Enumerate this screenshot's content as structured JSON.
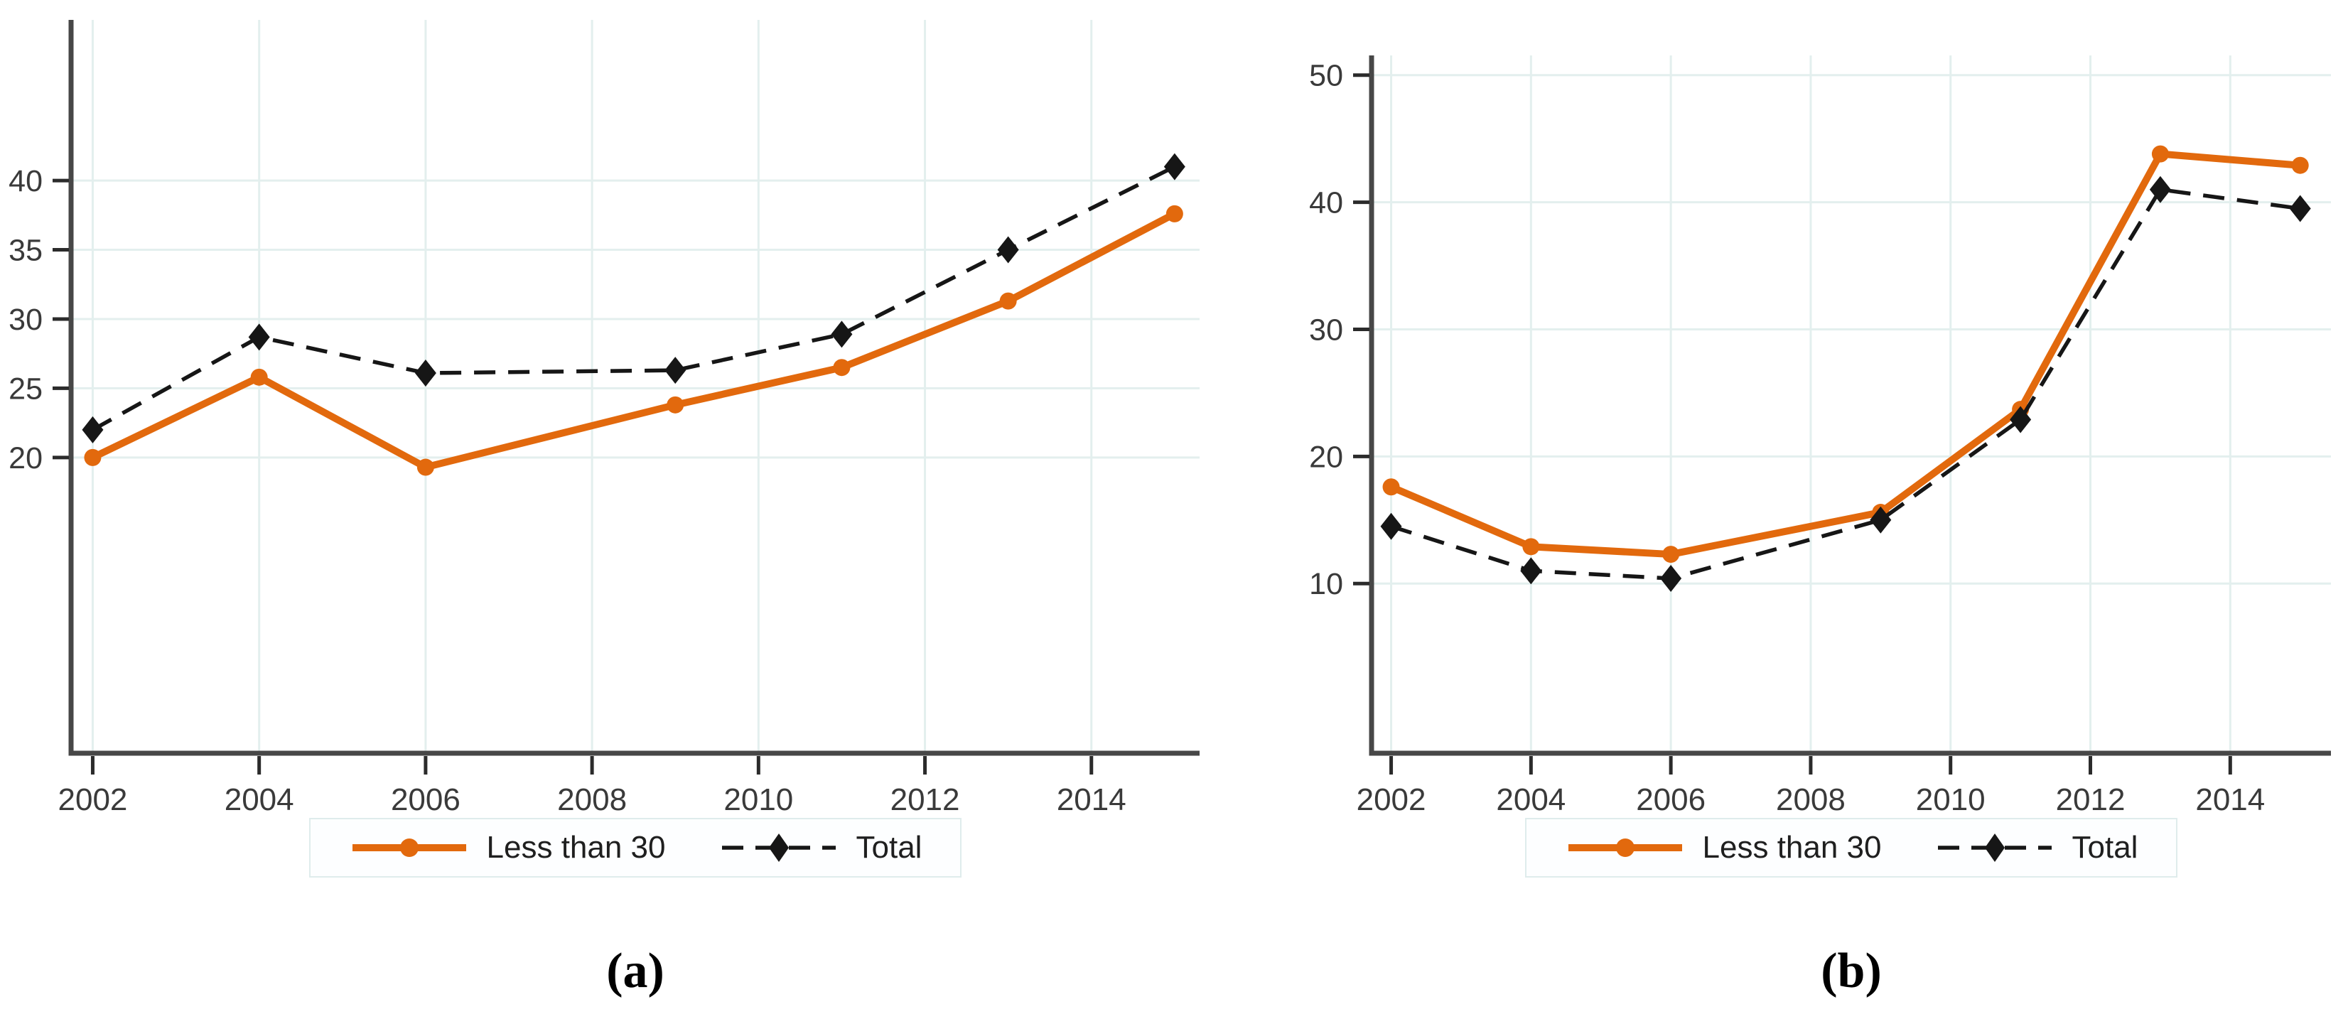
{
  "page": {
    "background": "#ffffff"
  },
  "colors": {
    "less_than_30": "#e2690d",
    "total": "#161616",
    "gridline": "#e3efee",
    "axis": "#474747",
    "tick_mark": "#2b2b2b",
    "tick_label": "#3a3a3a",
    "legend_border": "#dfecec",
    "legend_background": "#fdfeff",
    "caption_color": "#000000"
  },
  "legend": {
    "series1_label": "Less than 30",
    "series2_label": "Total"
  },
  "chart_data": [
    {
      "id": "a",
      "caption": "(a)",
      "type": "line",
      "x": [
        2002,
        2004,
        2006,
        2009,
        2011,
        2013,
        2015
      ],
      "series": [
        {
          "name": "Less than 30",
          "style": "solid-circle",
          "values": [
            20.0,
            25.8,
            19.3,
            23.8,
            26.5,
            31.3,
            37.6
          ]
        },
        {
          "name": "Total",
          "style": "dashed-diamond",
          "values": [
            22.0,
            28.7,
            26.1,
            26.3,
            28.9,
            35.0,
            41.0
          ]
        }
      ],
      "x_ticks": [
        2002,
        2004,
        2006,
        2008,
        2010,
        2012,
        2014
      ],
      "y_ticks": [
        20,
        25,
        30,
        35,
        40
      ],
      "xlim": [
        2001.74,
        2015.3
      ],
      "ylim": [
        -1.35,
        51.6
      ],
      "grid": true,
      "legend_position": "bottom-center"
    },
    {
      "id": "b",
      "caption": "(b)",
      "type": "line",
      "x": [
        2002,
        2004,
        2006,
        2009,
        2011,
        2013,
        2015
      ],
      "series": [
        {
          "name": "Less than 30",
          "style": "solid-circle",
          "values": [
            17.6,
            12.9,
            12.3,
            15.6,
            23.7,
            43.8,
            42.9
          ]
        },
        {
          "name": "Total",
          "style": "dashed-diamond",
          "values": [
            14.5,
            11.0,
            10.4,
            15.0,
            22.9,
            41.0,
            39.5
          ]
        }
      ],
      "x_ticks": [
        2002,
        2004,
        2006,
        2008,
        2010,
        2012,
        2014
      ],
      "y_ticks": [
        10,
        20,
        30,
        40,
        50
      ],
      "xlim": [
        2001.72,
        2015.44
      ],
      "ylim": [
        -3.35,
        51.55
      ],
      "grid": true,
      "legend_position": "bottom-center"
    }
  ]
}
